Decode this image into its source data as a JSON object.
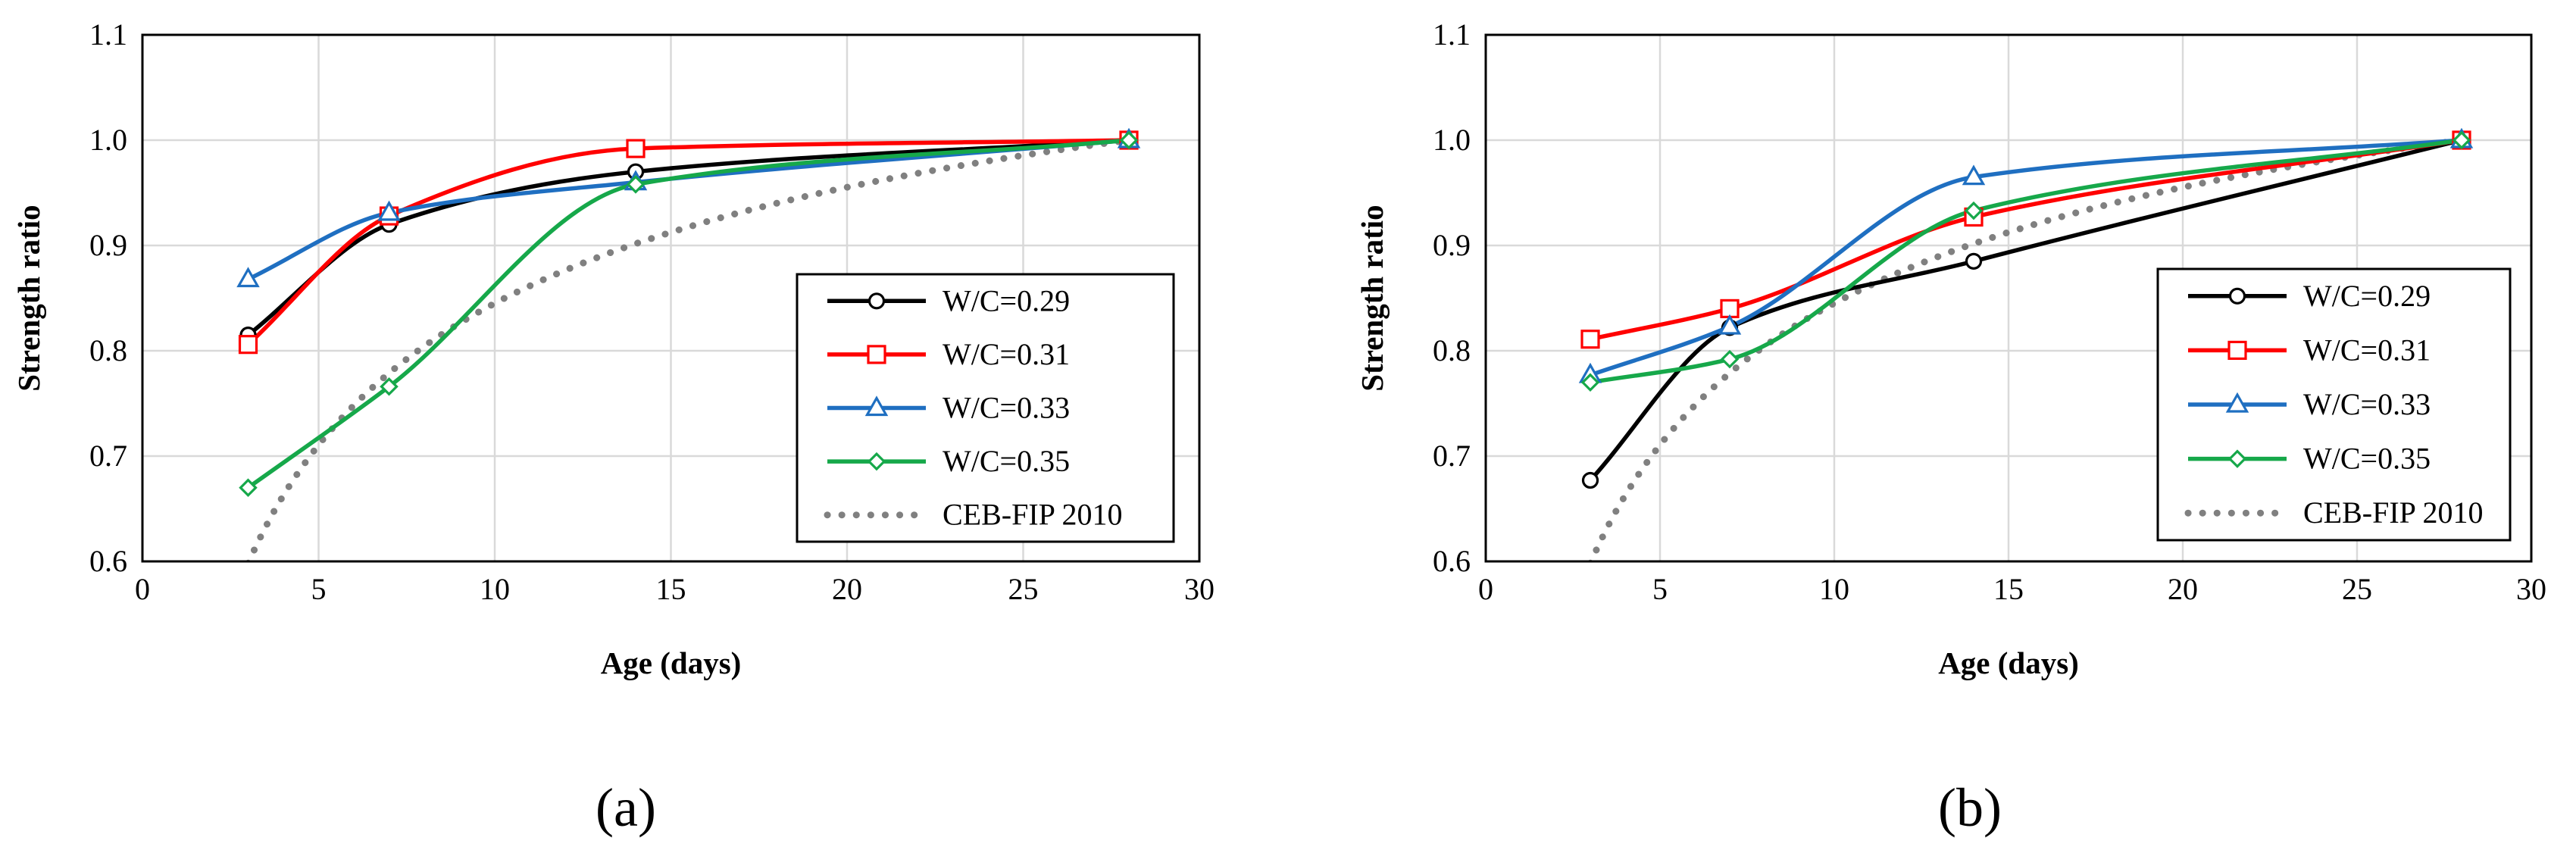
{
  "figure": {
    "panel_labels": [
      "(a)",
      "(b)"
    ]
  },
  "colors": {
    "W/C=0.29": "#000000",
    "W/C=0.31": "#ff0000",
    "W/C=0.33": "#1f6fc1",
    "W/C=0.35": "#16a84a",
    "CEB-FIP 2010": "#808080",
    "grid": "#d9d9d9"
  },
  "chart_data": [
    {
      "panel": "(a)",
      "type": "line",
      "xlabel": "Age (days)",
      "ylabel": "Strength ratio",
      "xlim": [
        0,
        30
      ],
      "ylim": [
        0.6,
        1.1
      ],
      "xticks": [
        0,
        5,
        10,
        15,
        20,
        25,
        30
      ],
      "xtick_labels": [
        "0",
        "5",
        "10",
        "15",
        "20",
        "25",
        "30"
      ],
      "yticks": [
        0.6,
        0.7,
        0.8,
        0.9,
        1.0,
        1.1
      ],
      "ytick_labels": [
        "0.6",
        "0.7",
        "0.8",
        "0.9",
        "1.0",
        "1.1"
      ],
      "grid": true,
      "legend_position": "bottom-right",
      "series": [
        {
          "name": "W/C=0.29",
          "marker": "circle",
          "x": [
            3,
            7,
            14,
            28
          ],
          "y": [
            0.815,
            0.92,
            0.97,
            1.0
          ]
        },
        {
          "name": "W/C=0.31",
          "marker": "square",
          "x": [
            3,
            7,
            14,
            28
          ],
          "y": [
            0.806,
            0.928,
            0.992,
            1.0
          ]
        },
        {
          "name": "W/C=0.33",
          "marker": "triangle",
          "x": [
            3,
            7,
            14,
            28
          ],
          "y": [
            0.868,
            0.931,
            0.96,
            1.0
          ]
        },
        {
          "name": "W/C=0.35",
          "marker": "diamond",
          "x": [
            3,
            7,
            14,
            28
          ],
          "y": [
            0.67,
            0.766,
            0.958,
            1.0
          ]
        },
        {
          "name": "CEB-FIP 2010",
          "marker": "none",
          "style": "dotted",
          "function": "ceb-fip",
          "x_start": 3,
          "x_end": 28
        }
      ]
    },
    {
      "panel": "(b)",
      "type": "line",
      "xlabel": "Age (days)",
      "ylabel": "Strength ratio",
      "xlim": [
        0,
        30
      ],
      "ylim": [
        0.6,
        1.1
      ],
      "xticks": [
        0,
        5,
        10,
        15,
        20,
        25,
        30
      ],
      "xtick_labels": [
        "0",
        "5",
        "10",
        "15",
        "20",
        "25",
        "30"
      ],
      "yticks": [
        0.6,
        0.7,
        0.8,
        0.9,
        1.0,
        1.1
      ],
      "ytick_labels": [
        "0.6",
        "0.7",
        "0.8",
        "0.9",
        "1.0",
        "1.1"
      ],
      "grid": true,
      "legend_position": "bottom-right",
      "series": [
        {
          "name": "W/C=0.29",
          "marker": "circle",
          "x": [
            3,
            7,
            14,
            28
          ],
          "y": [
            0.677,
            0.822,
            0.885,
            1.0
          ]
        },
        {
          "name": "W/C=0.31",
          "marker": "square",
          "x": [
            3,
            7,
            14,
            28
          ],
          "y": [
            0.811,
            0.84,
            0.927,
            1.0
          ]
        },
        {
          "name": "W/C=0.33",
          "marker": "triangle",
          "x": [
            3,
            7,
            14,
            28
          ],
          "y": [
            0.777,
            0.823,
            0.965,
            1.0
          ]
        },
        {
          "name": "W/C=0.35",
          "marker": "diamond",
          "x": [
            3,
            7,
            14,
            28
          ],
          "y": [
            0.77,
            0.792,
            0.933,
            1.0
          ]
        },
        {
          "name": "CEB-FIP 2010",
          "marker": "none",
          "style": "dotted",
          "function": "ceb-fip",
          "x_start": 3,
          "x_end": 28
        }
      ]
    }
  ]
}
